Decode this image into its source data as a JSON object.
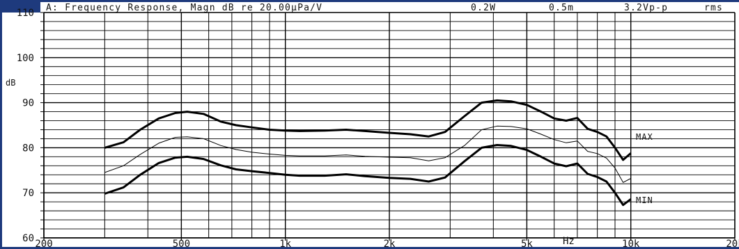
{
  "chart_data": {
    "type": "line",
    "header": {
      "title": "A: Frequency Response, Magn dB re 20.00µPa/V",
      "power": "0.2W",
      "distance": "0.5m",
      "voltage": "3.2Vp-p",
      "mode": "rms"
    },
    "ylabel": "dB",
    "xlabel": "Hz",
    "x_scale": "log",
    "xlim": [
      200,
      20000
    ],
    "ylim": [
      60,
      110
    ],
    "x_ticks": [
      {
        "value": 200,
        "label": "200"
      },
      {
        "value": 500,
        "label": "500"
      },
      {
        "value": 1000,
        "label": "1k"
      },
      {
        "value": 2000,
        "label": "2k"
      },
      {
        "value": 5000,
        "label": "5k"
      },
      {
        "value": 10000,
        "label": "10k"
      },
      {
        "value": 20000,
        "label": "20k"
      }
    ],
    "y_ticks": [
      {
        "value": 60,
        "label": "60"
      },
      {
        "value": 70,
        "label": "70"
      },
      {
        "value": 80,
        "label": "80"
      },
      {
        "value": 90,
        "label": "90"
      },
      {
        "value": 100,
        "label": "100"
      },
      {
        "value": 110,
        "label": "110"
      }
    ],
    "grid": true,
    "series": [
      {
        "name": "MAX",
        "style": "bold",
        "x": [
          300,
          340,
          380,
          430,
          480,
          520,
          580,
          650,
          720,
          800,
          900,
          1000,
          1100,
          1300,
          1500,
          1700,
          2000,
          2300,
          2600,
          2900,
          3300,
          3700,
          4100,
          4500,
          5000,
          5500,
          6000,
          6500,
          7000,
          7500,
          8000,
          8500,
          9000,
          9500,
          10000
        ],
        "y": [
          80,
          81.2,
          84,
          86.5,
          87.7,
          88,
          87.5,
          85.8,
          85,
          84.5,
          84,
          83.8,
          83.7,
          83.8,
          84,
          83.7,
          83.3,
          83,
          82.5,
          83.5,
          87,
          90,
          90.5,
          90.3,
          89.5,
          88,
          86.5,
          86,
          86.6,
          84.2,
          83.5,
          82.5,
          80,
          77.3,
          78.8
        ]
      },
      {
        "name": "",
        "style": "thin",
        "x": [
          300,
          340,
          380,
          430,
          480,
          520,
          580,
          650,
          720,
          800,
          900,
          1000,
          1100,
          1300,
          1500,
          1700,
          2000,
          2300,
          2600,
          2900,
          3300,
          3700,
          4100,
          4500,
          5000,
          5500,
          6000,
          6500,
          7000,
          7500,
          8000,
          8500,
          9000,
          9500,
          10000
        ],
        "y": [
          74.5,
          76,
          78.5,
          81,
          82.3,
          82.4,
          82,
          80.5,
          79.6,
          79,
          78.6,
          78.3,
          78.2,
          78.2,
          78.4,
          78.1,
          77.9,
          77.8,
          77.1,
          77.8,
          80.5,
          84,
          84.8,
          84.7,
          84.2,
          83,
          81.8,
          81.1,
          81.5,
          79.2,
          78.7,
          77.7,
          75.5,
          72.3,
          73.2
        ]
      },
      {
        "name": "MIN",
        "style": "bold",
        "x": [
          300,
          340,
          380,
          430,
          480,
          520,
          580,
          650,
          720,
          800,
          900,
          1000,
          1100,
          1300,
          1500,
          1700,
          2000,
          2300,
          2600,
          2900,
          3300,
          3700,
          4100,
          4500,
          5000,
          5500,
          6000,
          6500,
          7000,
          7500,
          8000,
          8500,
          9000,
          9500,
          10000
        ],
        "y": [
          69.8,
          71.2,
          74,
          76.6,
          77.8,
          78,
          77.5,
          76.1,
          75.2,
          74.8,
          74.4,
          74,
          73.8,
          73.8,
          74.1,
          73.7,
          73.3,
          73.1,
          72.5,
          73.4,
          77,
          80,
          80.6,
          80.4,
          79.5,
          78,
          76.5,
          75.9,
          76.5,
          74.2,
          73.5,
          72.5,
          70,
          67.3,
          68.6
        ]
      }
    ]
  }
}
